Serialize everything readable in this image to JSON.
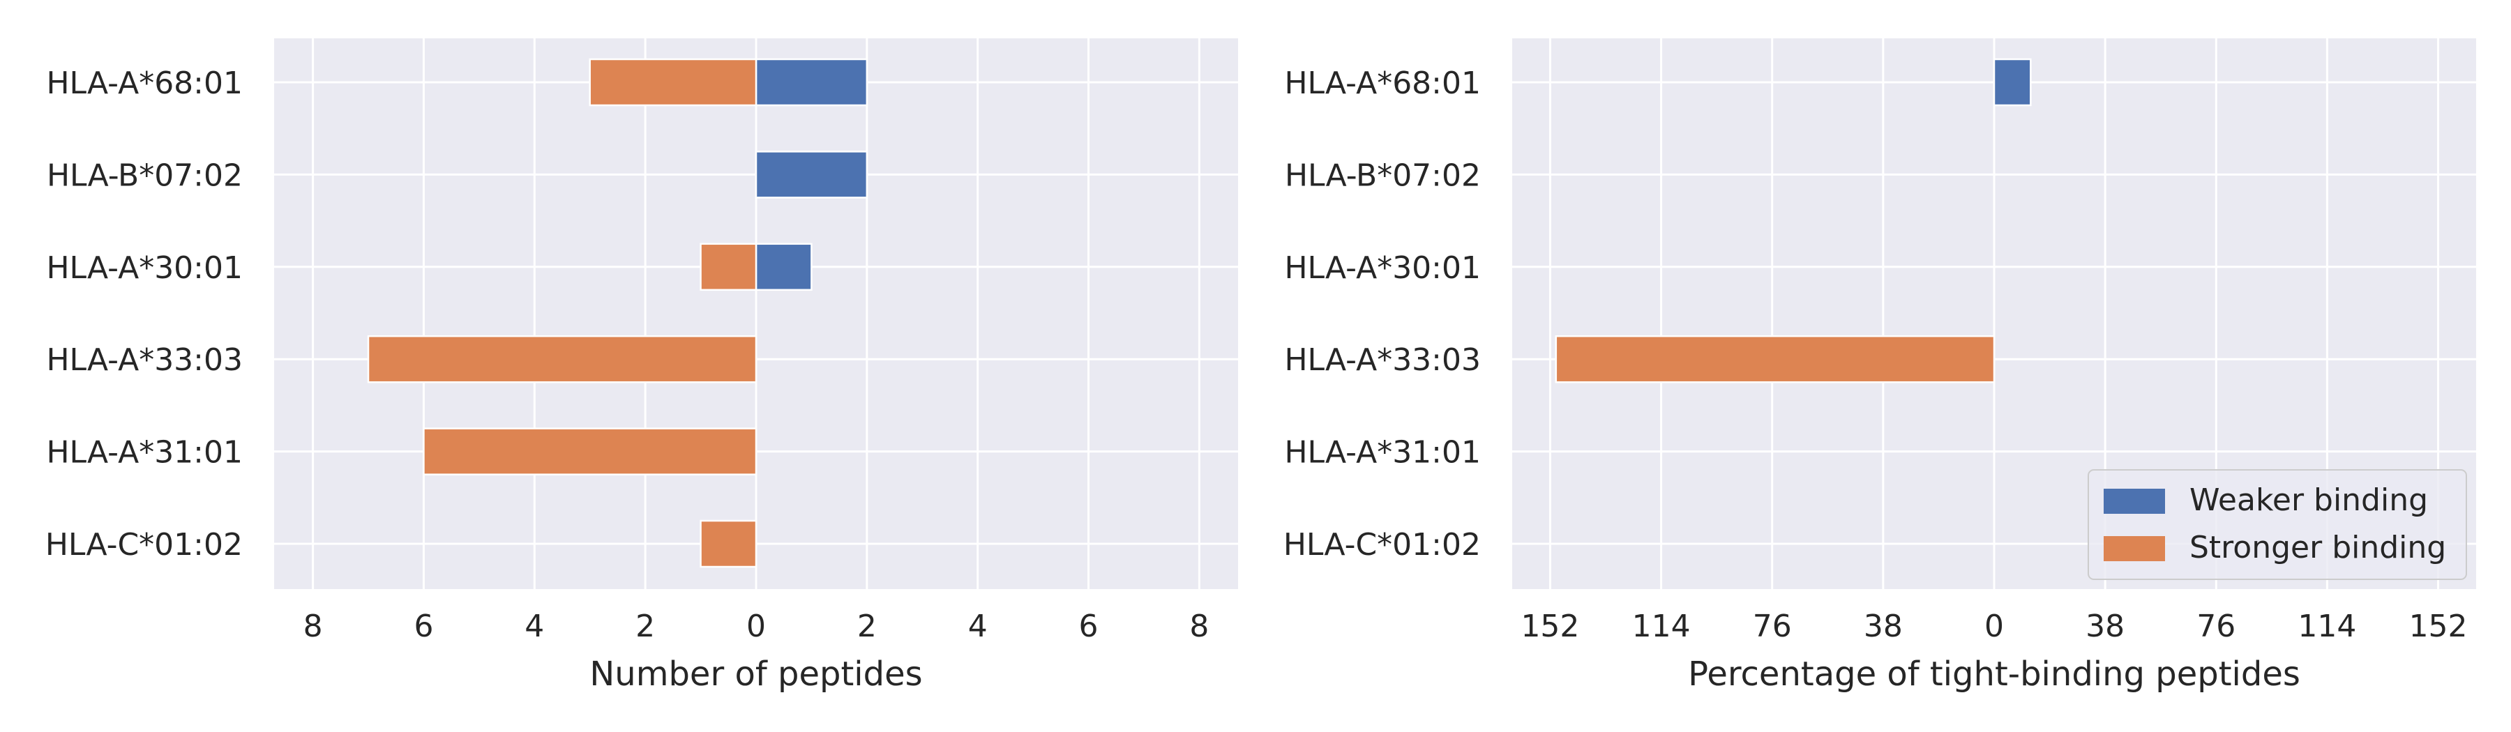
{
  "colors": {
    "background": "#eaeaf2",
    "grid": "#ffffff",
    "weaker": "#4c72b0",
    "stronger": "#dd8452"
  },
  "chart_data": [
    {
      "type": "bar",
      "orientation": "horizontal-diverging",
      "title": "",
      "xlabel": "Number of peptides",
      "ylabel": "",
      "xlim": [
        -8.7,
        8.7
      ],
      "xticks": [
        -8,
        -6,
        -4,
        -2,
        0,
        2,
        4,
        6,
        8
      ],
      "xtick_labels": [
        "8",
        "6",
        "4",
        "2",
        "0",
        "2",
        "4",
        "6",
        "8"
      ],
      "categories": [
        "HLA-A*68:01",
        "HLA-B*07:02",
        "HLA-A*30:01",
        "HLA-A*33:03",
        "HLA-A*31:01",
        "HLA-C*01:02"
      ],
      "series": [
        {
          "name": "Weaker binding",
          "color": "#4c72b0",
          "side": "right",
          "values": [
            2,
            2,
            1,
            0,
            0,
            0
          ]
        },
        {
          "name": "Stronger binding",
          "color": "#dd8452",
          "side": "left",
          "values": [
            3,
            0,
            1,
            7,
            6,
            1
          ]
        }
      ],
      "grid": true
    },
    {
      "type": "bar",
      "orientation": "horizontal-diverging",
      "title": "",
      "xlabel": "Percentage of tight-binding peptides",
      "ylabel": "",
      "xlim": [
        -165,
        165
      ],
      "xticks": [
        -152,
        -114,
        -76,
        -38,
        0,
        38,
        76,
        114,
        152
      ],
      "xtick_labels": [
        "152",
        "114",
        "76",
        "38",
        "0",
        "38",
        "76",
        "114",
        "152"
      ],
      "categories": [
        "HLA-A*68:01",
        "HLA-B*07:02",
        "HLA-A*30:01",
        "HLA-A*33:03",
        "HLA-A*31:01",
        "HLA-C*01:02"
      ],
      "series": [
        {
          "name": "Weaker binding",
          "color": "#4c72b0",
          "side": "right",
          "values": [
            12.5,
            0,
            0,
            0,
            0,
            0
          ]
        },
        {
          "name": "Stronger binding",
          "color": "#dd8452",
          "side": "left",
          "values": [
            0,
            0,
            0,
            150,
            0,
            0
          ]
        }
      ],
      "grid": true,
      "legend": {
        "position": "lower-right",
        "entries": [
          "Weaker binding",
          "Stronger binding"
        ]
      }
    }
  ]
}
